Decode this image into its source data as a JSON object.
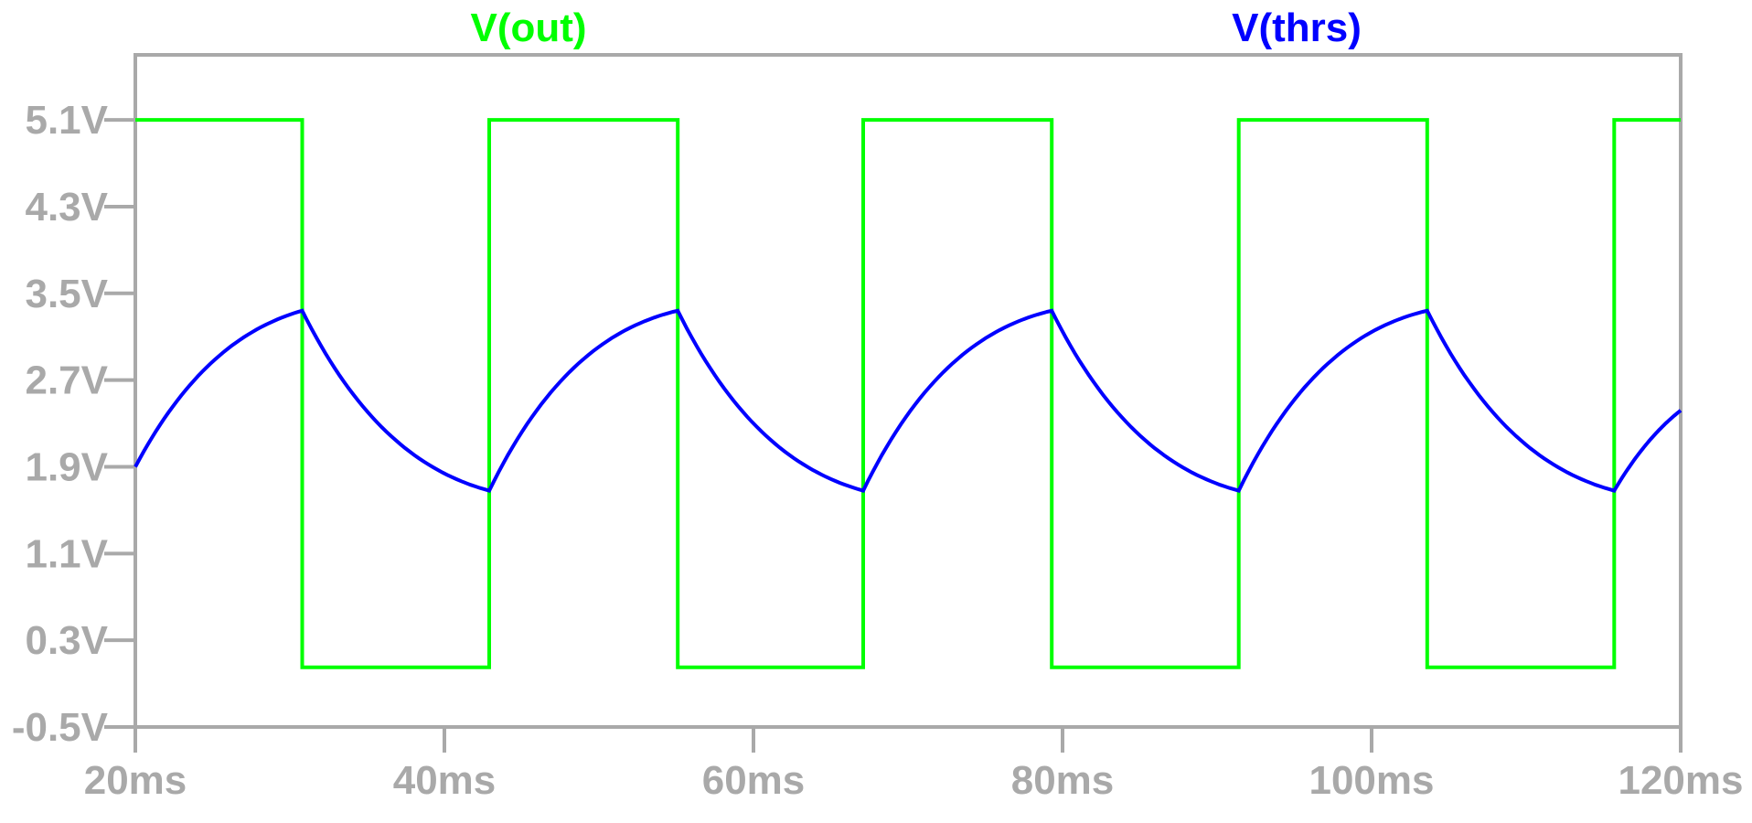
{
  "chart_data": {
    "type": "line",
    "title": "",
    "xlabel": "",
    "ylabel": "",
    "xlim": [
      20,
      120
    ],
    "ylim": [
      -0.5,
      5.7
    ],
    "x_unit": "ms",
    "y_unit": "V",
    "x_ticks": [
      20,
      40,
      60,
      80,
      100,
      120
    ],
    "x_tick_labels": [
      "20ms",
      "40ms",
      "60ms",
      "80ms",
      "100ms",
      "120ms"
    ],
    "y_ticks": [
      5.1,
      4.3,
      3.5,
      2.7,
      1.9,
      1.1,
      0.3,
      -0.5
    ],
    "y_tick_labels": [
      "5.1V",
      "4.3V",
      "3.5V",
      "2.7V",
      "1.9V",
      "1.1V",
      "0.3V",
      "-0.5V"
    ],
    "grid": false,
    "legend_placement": "top",
    "axis_color": "#a9a9a9",
    "series": [
      {
        "name": "V(out)",
        "color": "#00ff00",
        "shape": "step",
        "x": [
          20,
          30.8,
          30.8,
          42.9,
          42.9,
          55.1,
          55.1,
          67.1,
          67.1,
          79.3,
          79.3,
          91.4,
          91.4,
          103.6,
          103.6,
          115.7,
          115.7,
          120
        ],
        "y": [
          5.1,
          5.1,
          0.05,
          0.05,
          5.1,
          5.1,
          0.05,
          0.05,
          5.1,
          5.1,
          0.05,
          0.05,
          5.1,
          5.1,
          0.05,
          0.05,
          5.1,
          5.1
        ]
      },
      {
        "name": "V(thrs)",
        "color": "#0000ff",
        "shape": "rc-exponential",
        "x": [
          20,
          30.8,
          42.9,
          55.1,
          67.1,
          79.3,
          91.4,
          103.6,
          115.7,
          120
        ],
        "y": [
          1.9,
          3.34,
          1.68,
          3.34,
          1.68,
          3.34,
          1.68,
          3.34,
          1.68,
          2.42
        ]
      }
    ]
  }
}
